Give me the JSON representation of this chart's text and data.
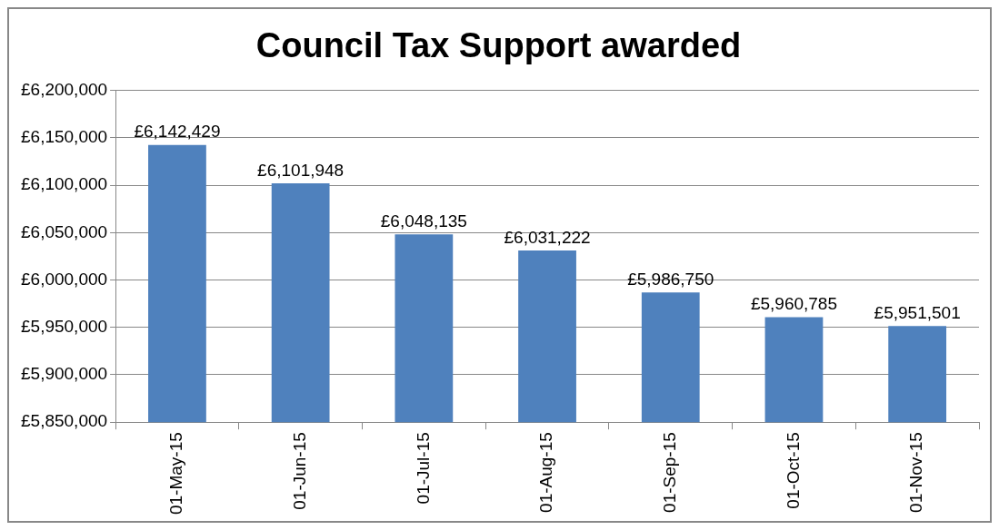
{
  "chart_data": {
    "type": "bar",
    "title": "Council Tax Support awarded",
    "categories": [
      "01-May-15",
      "01-Jun-15",
      "01-Jul-15",
      "01-Aug-15",
      "01-Sep-15",
      "01-Oct-15",
      "01-Nov-15"
    ],
    "values": [
      6142429,
      6101948,
      6048135,
      6031222,
      5986750,
      5960785,
      5951501
    ],
    "value_labels": [
      "£6,142,429",
      "£6,101,948",
      "£6,048,135",
      "£6,031,222",
      "£5,986,750",
      "£5,960,785",
      "£5,951,501"
    ],
    "color": "#4f81bd",
    "ylim": [
      5850000,
      6200000
    ],
    "yticks": [
      {
        "value": 5850000,
        "label": "£5,850,000"
      },
      {
        "value": 5900000,
        "label": "£5,900,000"
      },
      {
        "value": 5950000,
        "label": "£5,950,000"
      },
      {
        "value": 6000000,
        "label": "£6,000,000"
      },
      {
        "value": 6050000,
        "label": "£6,050,000"
      },
      {
        "value": 6100000,
        "label": "£6,100,000"
      },
      {
        "value": 6150000,
        "label": "£6,150,000"
      },
      {
        "value": 6200000,
        "label": "£6,200,000"
      }
    ],
    "grid": "y",
    "legend": false
  }
}
